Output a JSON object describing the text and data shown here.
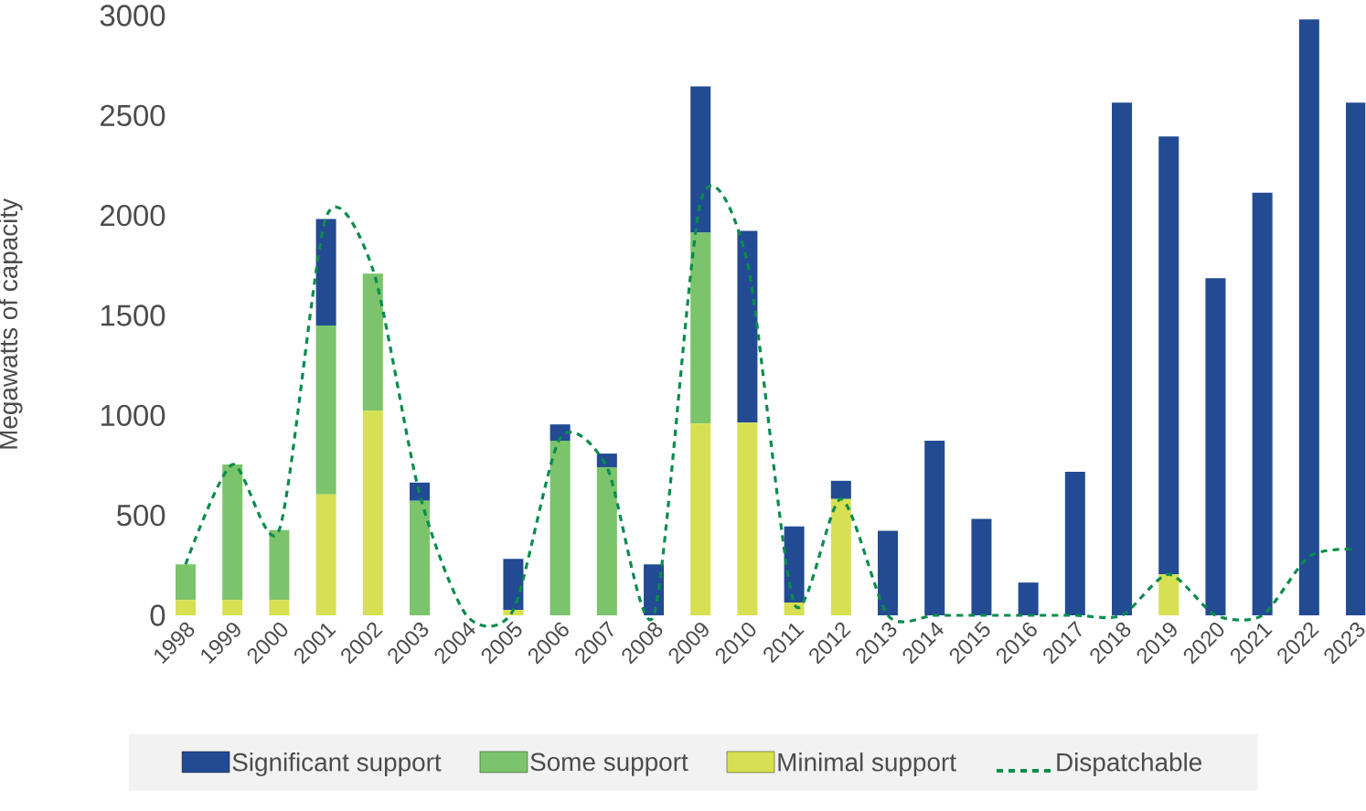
{
  "chart_data": {
    "type": "bar",
    "stacked": true,
    "ylabel": "Megawatts of capacity",
    "legend": "bottom",
    "categories": [
      "1998",
      "1999",
      "2000",
      "2001",
      "2002",
      "2003",
      "2004",
      "2005",
      "2006",
      "2007",
      "2008",
      "2009",
      "2010",
      "2011",
      "2012",
      "2013",
      "2014",
      "2015",
      "2016",
      "2017",
      "2018",
      "2019",
      "2020",
      "2021",
      "2022",
      "2023"
    ],
    "ylim": [
      0,
      3000
    ],
    "yticks": [
      0,
      500,
      1000,
      1500,
      2000,
      2500,
      3000
    ],
    "series": [
      {
        "name": "Minimal support",
        "color": "#d7e052",
        "values": [
          77,
          77,
          77,
          605,
          1023,
          0,
          0,
          27,
          0,
          0,
          0,
          959,
          964,
          64,
          582,
          0,
          0,
          0,
          0,
          0,
          0,
          205,
          0,
          0,
          0,
          0
        ]
      },
      {
        "name": "Some support",
        "color": "#7bc46b",
        "values": [
          178,
          678,
          350,
          845,
          686,
          573,
          0,
          0,
          873,
          741,
          0,
          955,
          0,
          0,
          0,
          0,
          0,
          0,
          0,
          0,
          0,
          0,
          0,
          0,
          0,
          0
        ]
      },
      {
        "name": "Significant support",
        "color": "#224b93",
        "values": [
          0,
          0,
          0,
          532,
          0,
          91,
          0,
          255,
          82,
          68,
          255,
          731,
          959,
          381,
          91,
          423,
          873,
          482,
          164,
          718,
          2564,
          2190,
          1686,
          2114,
          2980,
          2564
        ]
      },
      {
        "name": "Dispatchable",
        "type": "line",
        "color": "#0a8c4c",
        "line_style": "dashed",
        "values": [
          255,
          755,
          427,
          1990,
          1730,
          605,
          0,
          27,
          886,
          741,
          0,
          2068,
          1764,
          59,
          582,
          0,
          0,
          0,
          0,
          0,
          0,
          205,
          0,
          0,
          295,
          332
        ]
      }
    ]
  }
}
